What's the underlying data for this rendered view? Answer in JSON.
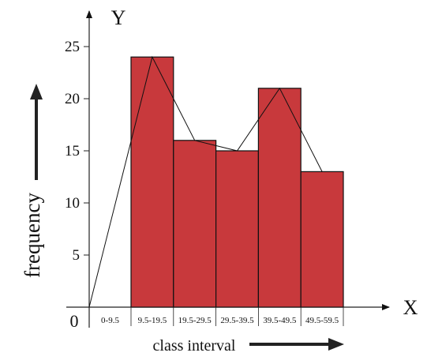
{
  "chart_data": {
    "type": "bar",
    "title": "",
    "xlabel": "class interval",
    "ylabel": "frequency",
    "x_axis_letter": "X",
    "y_axis_letter": "Y",
    "origin_label": "0",
    "categories": [
      "0-9.5",
      "9.5-19.5",
      "19.5-29.5",
      "29.5-39.5",
      "39.5-49.5",
      "49.5-59.5"
    ],
    "values": [
      0,
      24,
      16,
      15,
      21,
      13
    ],
    "y_ticks": [
      "5",
      "10",
      "15",
      "20",
      "25"
    ],
    "ylim": [
      0,
      27
    ],
    "grid": false,
    "frequency_polygon": true,
    "bar_color": "#c8393c",
    "bar_stroke": "#111111"
  }
}
